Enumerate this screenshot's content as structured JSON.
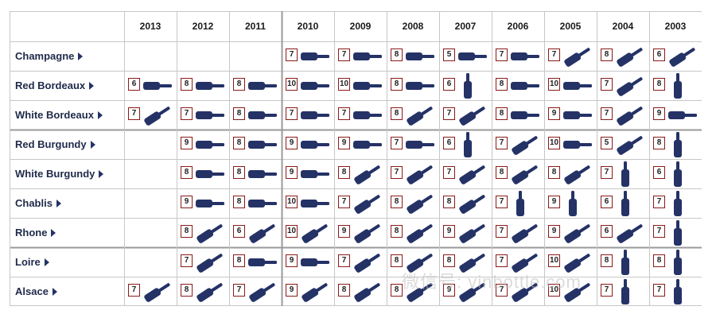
{
  "chart_data": {
    "type": "table",
    "columns": [
      "2013",
      "2012",
      "2011",
      "2010",
      "2009",
      "2008",
      "2007",
      "2006",
      "2005",
      "2004",
      "2003"
    ],
    "rows": [
      {
        "region": "Champagne",
        "scores": [
          null,
          null,
          null,
          "7",
          "7",
          "8",
          "5",
          "7",
          "7",
          "8",
          "6"
        ],
        "bottles": [
          null,
          null,
          null,
          "lying",
          "lying",
          "lying",
          "lying",
          "lying",
          "tilted",
          "tilted",
          "tilted"
        ]
      },
      {
        "region": "Red Bordeaux",
        "scores": [
          "6",
          "8",
          "8",
          "10",
          "10",
          "8",
          "6",
          "8",
          "10",
          "7",
          "8"
        ],
        "bottles": [
          "lying",
          "lying",
          "lying",
          "lying",
          "lying",
          "lying",
          "upright",
          "lying",
          "lying",
          "tilted",
          "upright"
        ]
      },
      {
        "region": "White Bordeaux",
        "scores": [
          "7",
          "7",
          "8",
          "7",
          "7",
          "8",
          "7",
          "8",
          "9",
          "7",
          "9"
        ],
        "bottles": [
          "tilted",
          "lying",
          "lying",
          "lying",
          "lying",
          "tilted",
          "tilted",
          "lying",
          "lying",
          "tilted",
          "lying"
        ]
      },
      {
        "region": "Red Burgundy",
        "scores": [
          null,
          "9",
          "8",
          "9",
          "9",
          "7",
          "6",
          "7",
          "10",
          "5",
          "8"
        ],
        "bottles": [
          null,
          "lying",
          "lying",
          "lying",
          "lying",
          "lying",
          "upright",
          "tilted",
          "lying",
          "tilted",
          "upright"
        ]
      },
      {
        "region": "White Burgundy",
        "scores": [
          null,
          "8",
          "8",
          "9",
          "8",
          "7",
          "7",
          "8",
          "8",
          "7",
          "6"
        ],
        "bottles": [
          null,
          "lying",
          "lying",
          "lying",
          "tilted",
          "tilted",
          "tilted",
          "tilted",
          "tilted",
          "upright",
          "upright"
        ]
      },
      {
        "region": "Chablis",
        "scores": [
          null,
          "9",
          "8",
          "10",
          "7",
          "8",
          "8",
          "7",
          "9",
          "6",
          "7"
        ],
        "bottles": [
          null,
          "lying",
          "lying",
          "lying",
          "tilted",
          "tilted",
          "tilted",
          "upright",
          "upright",
          "upright",
          "upright"
        ]
      },
      {
        "region": "Rhone",
        "scores": [
          null,
          "8",
          "6",
          "10",
          "9",
          "8",
          "9",
          "7",
          "9",
          "6",
          "7"
        ],
        "bottles": [
          null,
          "tilted",
          "tilted",
          "tilted",
          "tilted",
          "tilted",
          "tilted",
          "tilted",
          "tilted",
          "tilted",
          "upright"
        ]
      },
      {
        "region": "Loire",
        "scores": [
          null,
          "7",
          "8",
          "9",
          "7",
          "8",
          "8",
          "7",
          "10",
          "8",
          "8"
        ],
        "bottles": [
          null,
          "tilted",
          "lying",
          "lying",
          "tilted",
          "tilted",
          "tilted",
          "tilted",
          "tilted",
          "upright",
          "upright"
        ]
      },
      {
        "region": "Alsace",
        "scores": [
          "7",
          "8",
          "7",
          "9",
          "8",
          "8",
          "9",
          "7",
          "10",
          "7",
          "7"
        ],
        "bottles": [
          "tilted",
          "tilted",
          "tilted",
          "tilted",
          "tilted",
          "tilted",
          "tilted",
          "tilted",
          "tilted",
          "upright",
          "upright"
        ]
      }
    ]
  },
  "colors": {
    "bottle": "#243266",
    "score_border": "#8a1a1a",
    "grid": "#c7c7c7",
    "section_rule": "#9a9a9a"
  },
  "watermark": "微信号: vinbottle.com"
}
